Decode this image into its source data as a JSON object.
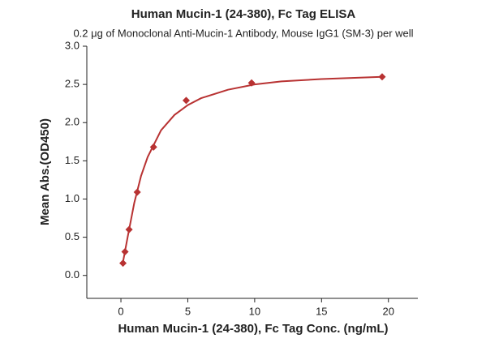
{
  "chart_data": {
    "type": "scatter",
    "title": "Human Mucin-1 (24-380), Fc Tag ELISA",
    "subtitle": "0.2 μg of Monoclonal Anti-Mucin-1 Antibody, Mouse IgG1 (SM-3)  per well",
    "x_label": "Human Mucin-1 (24-380), Fc Tag Conc. (ng/mL)",
    "y_label": "Mean Abs.(OD450)",
    "color": "#b83232",
    "x": [
      0.153,
      0.305,
      0.61,
      1.22,
      2.44,
      4.88,
      9.77,
      19.53
    ],
    "values": [
      0.16,
      0.31,
      0.6,
      1.09,
      1.68,
      2.29,
      2.52,
      2.6
    ],
    "curve": {
      "x": [
        0.15,
        0.5,
        1,
        1.5,
        2,
        3,
        4,
        5,
        6,
        8,
        10,
        12,
        15,
        19.53
      ],
      "values": [
        0.17,
        0.5,
        0.95,
        1.3,
        1.55,
        1.9,
        2.1,
        2.23,
        2.32,
        2.43,
        2.5,
        2.54,
        2.57,
        2.6
      ]
    },
    "xlim": [
      -2.55,
      22.2
    ],
    "ylim": [
      -0.3,
      3.0
    ],
    "xticks": [
      0,
      5,
      10,
      15,
      20
    ],
    "yticks": [
      {
        "value": 0,
        "label": "0.0"
      },
      0.5,
      {
        "value": 1,
        "label": "1.0"
      },
      1.5,
      {
        "value": 2,
        "label": "2.0"
      },
      2.5,
      {
        "value": 3,
        "label": "3.0"
      }
    ]
  }
}
